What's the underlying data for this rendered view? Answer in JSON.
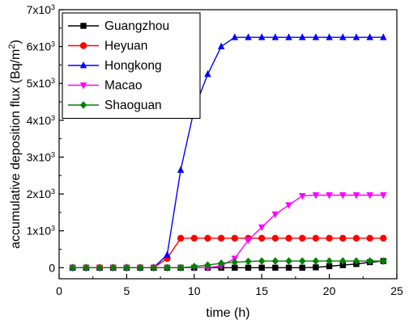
{
  "chart_data": {
    "type": "line",
    "title": "",
    "xlabel": "time (h)",
    "ylabel": "accumulative deposition flux (Bq/m²)",
    "ylabel_parts": {
      "main": "accumulative deposition flux (Bq/m",
      "sup": "2",
      "end": ")"
    },
    "xlim": [
      0,
      25
    ],
    "ylim": [
      -300,
      7000
    ],
    "x_ticks": [
      0,
      5,
      10,
      15,
      20,
      25
    ],
    "x_tick_labels": [
      "0",
      "5",
      "10",
      "15",
      "20",
      "25"
    ],
    "y_ticks": [
      0,
      1000,
      2000,
      3000,
      4000,
      5000,
      6000,
      7000
    ],
    "y_tick_labels": [
      {
        "base": "0",
        "exp": ""
      },
      {
        "base": "1x10",
        "exp": "3"
      },
      {
        "base": "2x10",
        "exp": "3"
      },
      {
        "base": "3x10",
        "exp": "3"
      },
      {
        "base": "4x10",
        "exp": "3"
      },
      {
        "base": "5x10",
        "exp": "3"
      },
      {
        "base": "6x10",
        "exp": "3"
      },
      {
        "base": "7x10",
        "exp": "3"
      }
    ],
    "grid": false,
    "legend_position": "top-left",
    "x": [
      1,
      2,
      3,
      4,
      5,
      6,
      7,
      8,
      9,
      10,
      11,
      12,
      13,
      14,
      15,
      16,
      17,
      18,
      19,
      20,
      21,
      22,
      23,
      24
    ],
    "series": [
      {
        "name": "Guangzhou",
        "color": "#000000",
        "marker": "square",
        "values": [
          0,
          0,
          0,
          0,
          0,
          0,
          0,
          0,
          0,
          0,
          0,
          0,
          0,
          0,
          0,
          0,
          0,
          0,
          10,
          40,
          70,
          100,
          150,
          180
        ]
      },
      {
        "name": "Heyuan",
        "color": "#ff0000",
        "marker": "circle",
        "values": [
          0,
          0,
          0,
          0,
          0,
          0,
          0,
          250,
          800,
          800,
          800,
          800,
          800,
          800,
          800,
          800,
          800,
          800,
          800,
          800,
          800,
          800,
          800,
          800
        ]
      },
      {
        "name": "Hongkong",
        "color": "#0000ff",
        "marker": "triangle-up",
        "values": [
          0,
          0,
          0,
          0,
          0,
          0,
          0,
          350,
          2650,
          4300,
          5250,
          6000,
          6250,
          6250,
          6250,
          6250,
          6250,
          6250,
          6250,
          6250,
          6250,
          6250,
          6250,
          6250
        ]
      },
      {
        "name": "Macao",
        "color": "#ff00ff",
        "marker": "triangle-down",
        "values": [
          0,
          0,
          0,
          0,
          0,
          0,
          0,
          0,
          0,
          0,
          0,
          50,
          250,
          750,
          1100,
          1450,
          1700,
          1950,
          1970,
          1970,
          1970,
          1970,
          1970,
          1970
        ]
      },
      {
        "name": "Shaoguan",
        "color": "#008000",
        "marker": "diamond",
        "values": [
          0,
          0,
          0,
          0,
          0,
          0,
          0,
          0,
          0,
          30,
          70,
          120,
          150,
          170,
          180,
          180,
          180,
          180,
          180,
          180,
          180,
          180,
          180,
          180
        ]
      }
    ]
  }
}
